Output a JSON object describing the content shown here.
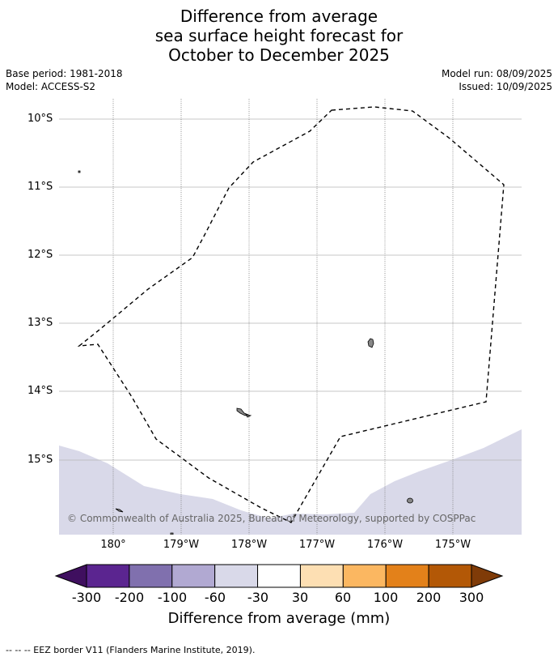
{
  "title": {
    "line1": "Difference from average",
    "line2": "sea surface height forecast for",
    "line3": "October to December 2025"
  },
  "meta": {
    "base_period": "Base period: 1981-2018",
    "model": "Model: ACCESS-S2",
    "model_run": "Model run: 08/09/2025",
    "issued": "Issued: 10/09/2025"
  },
  "axes": {
    "lat_labels": [
      "10°S",
      "11°S",
      "12°S",
      "13°S",
      "14°S",
      "15°S"
    ],
    "lon_labels": [
      "180°",
      "179°W",
      "178°W",
      "177°W",
      "176°W",
      "175°W"
    ]
  },
  "copyright": "© Commonwealth of Australia 2025, Bureau of Meteorology, supported by COSPPac",
  "colorbar": {
    "title": "Difference from average (mm)",
    "ticks": [
      "-300",
      "-200",
      "-100",
      "-60",
      "-30",
      "30",
      "60",
      "100",
      "200",
      "300"
    ],
    "colors": [
      "#3f0f5f",
      "#5b2590",
      "#8070ae",
      "#b1a9d2",
      "#d9d9e9",
      "#ffffff",
      "#fddfb3",
      "#fbb761",
      "#e3811a",
      "#b35806",
      "#7f3b08"
    ]
  },
  "map_colors": {
    "sea_band": "#d9d9e9",
    "land": "#888888"
  },
  "footer": "--  --  -- EEZ border V11 (Flanders Marine Institute, 2019)."
}
